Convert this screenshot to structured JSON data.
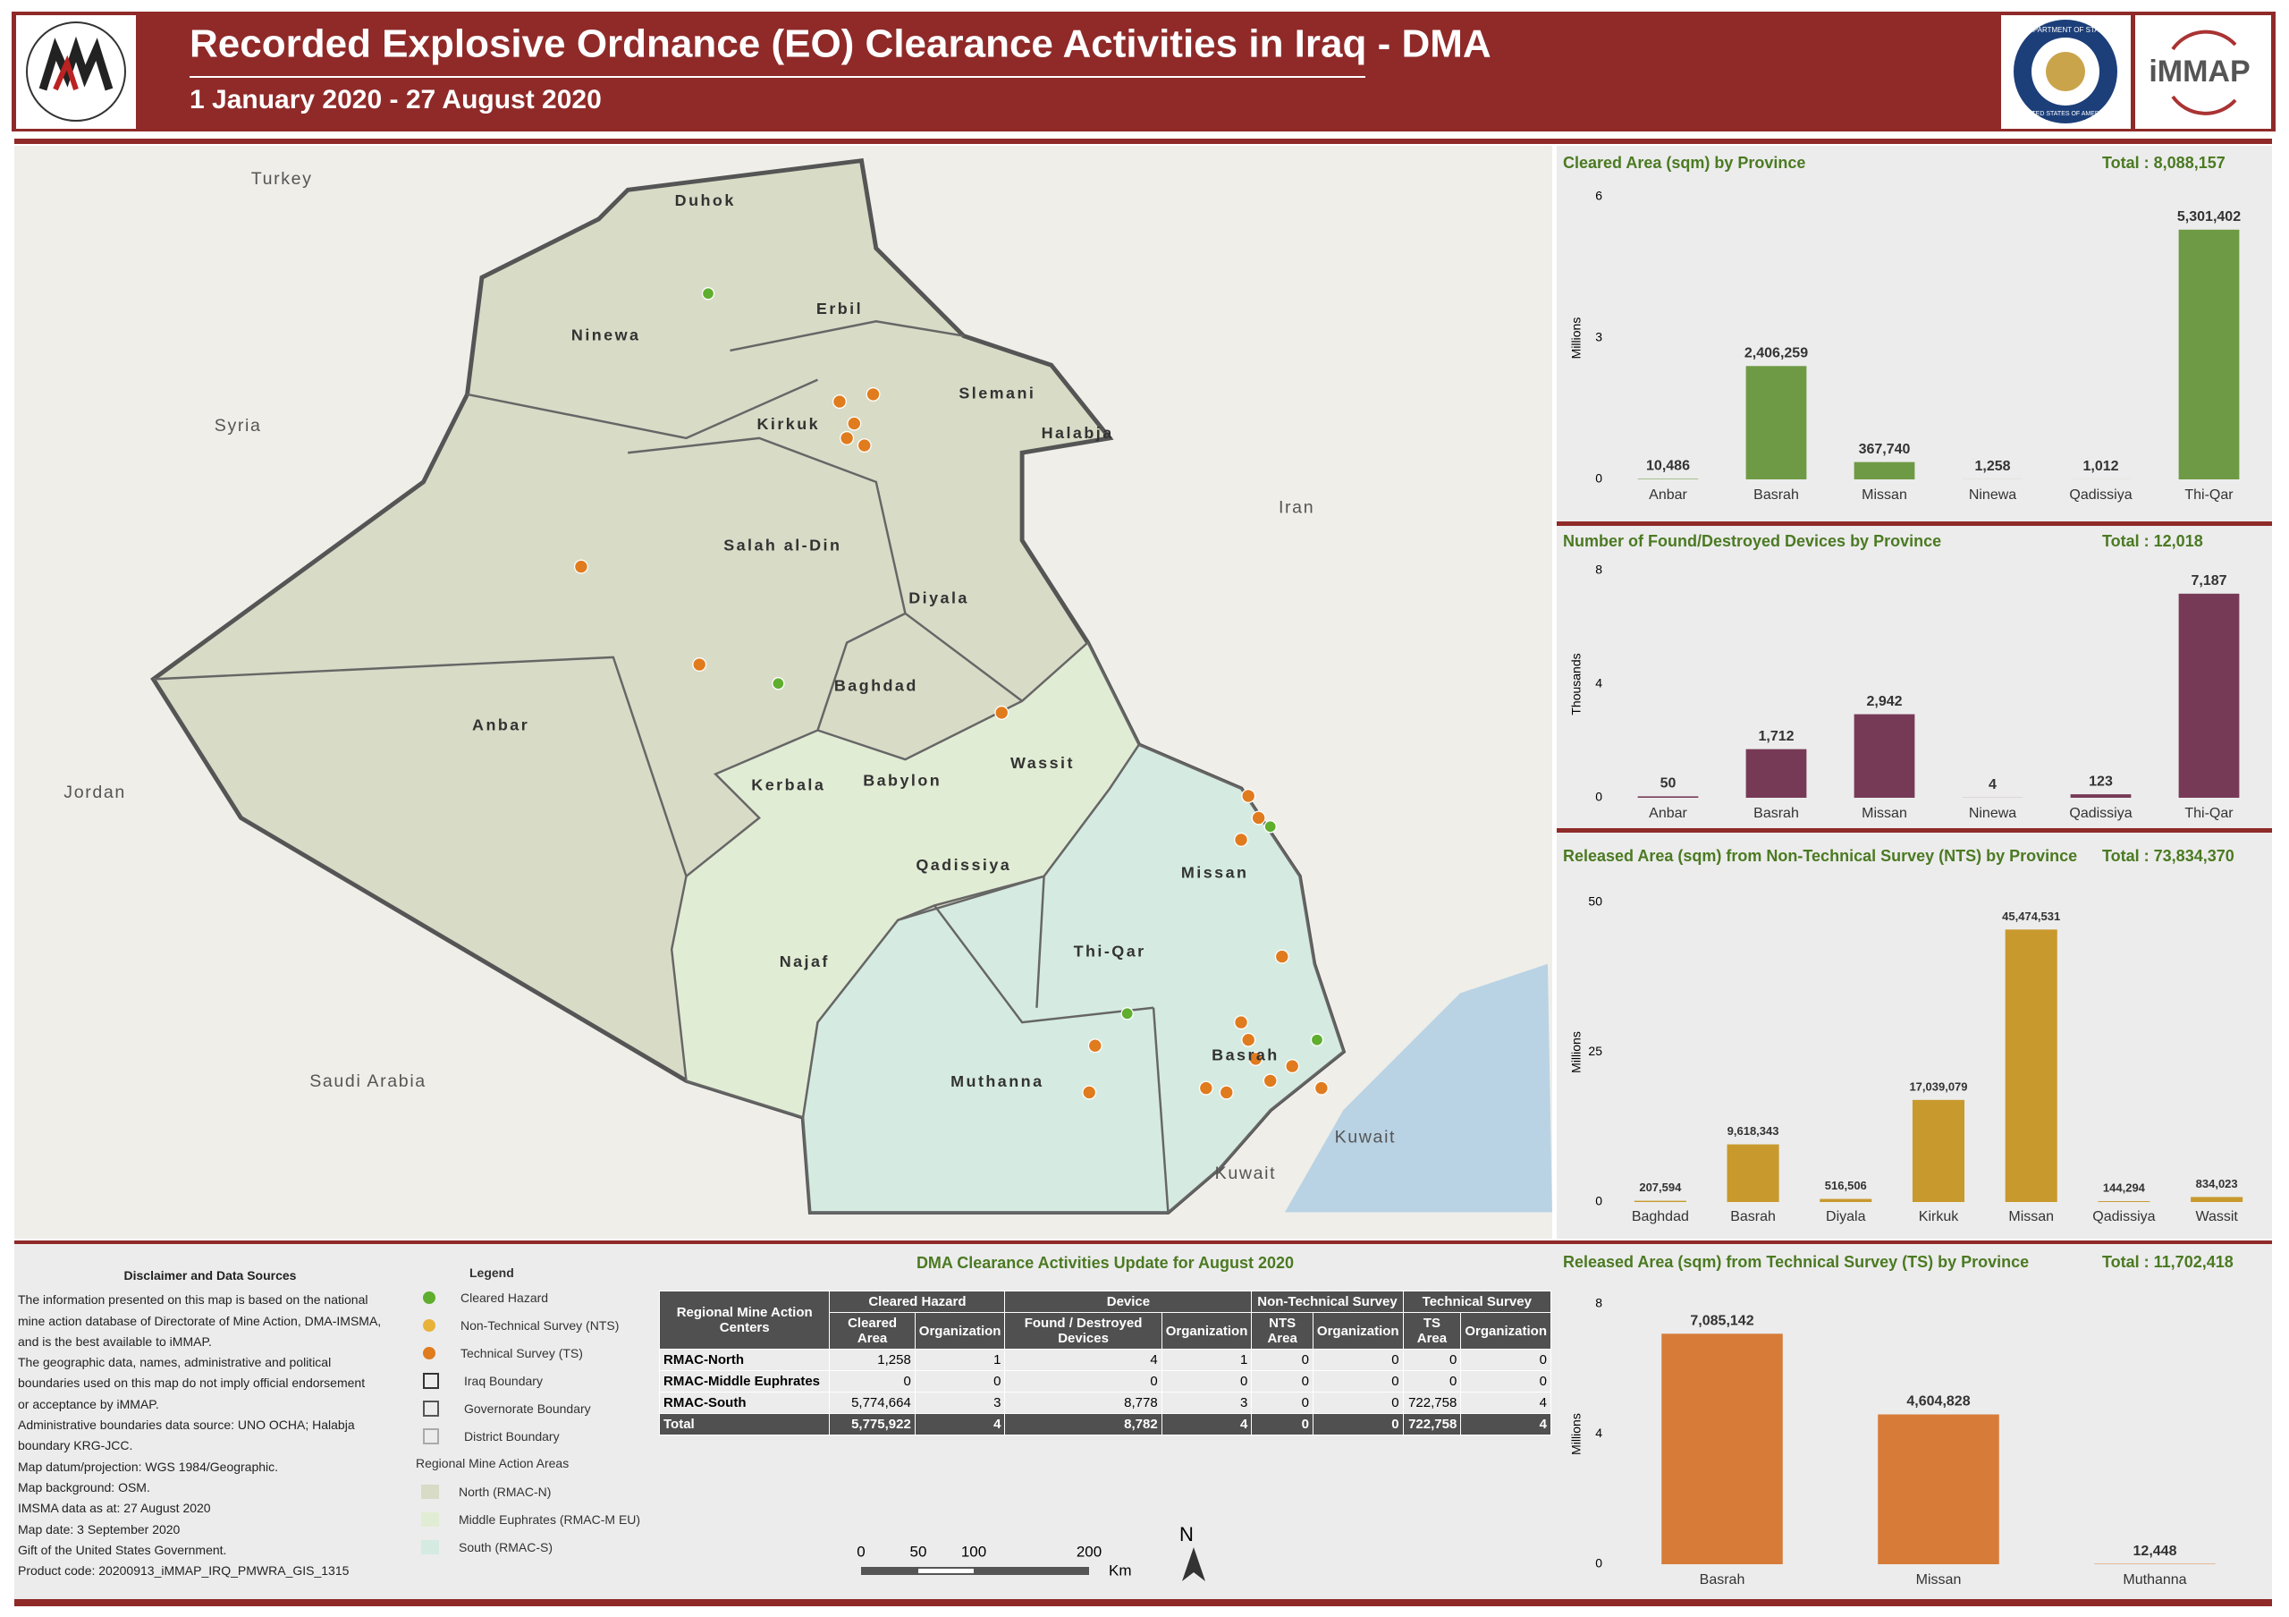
{
  "header": {
    "title": "Recorded Explosive Ordnance (EO) Clearance Activities in Iraq - DMA",
    "subtitle": "1 January 2020 - 27 August 2020",
    "partner": "iMMAP",
    "seal_top": "DEPARTMENT OF STATE",
    "seal_bottom": "UNITED STATES OF AMERICA"
  },
  "chart_data": [
    {
      "type": "bar",
      "title": "Cleared Area (sqm) by Province",
      "total": "Total : 8,088,157",
      "y_label": "Millions",
      "color": "#6f9a45",
      "categories": [
        "Anbar",
        "Basrah",
        "Missan",
        "Ninewa",
        "Qadissiya",
        "Thi-Qar"
      ],
      "values": [
        0.010486,
        2.406259,
        0.36774,
        0.001258,
        0.001012,
        5.301402
      ],
      "value_labels": [
        "10,486",
        "2,406,259",
        "367,740",
        "1,258",
        "1,012",
        "5,301,402"
      ],
      "ylim": [
        0,
        6
      ],
      "yticks": [
        0,
        3,
        6
      ]
    },
    {
      "type": "bar",
      "title": "Number of Found/Destroyed Devices by Province",
      "total": "Total : 12,018",
      "y_label": "Thousands",
      "color": "#773a56",
      "categories": [
        "Anbar",
        "Basrah",
        "Missan",
        "Ninewa",
        "Qadissiya",
        "Thi-Qar"
      ],
      "values": [
        0.05,
        1.712,
        2.942,
        0.004,
        0.123,
        7.187
      ],
      "value_labels": [
        "50",
        "1,712",
        "2,942",
        "4",
        "123",
        "7,187"
      ],
      "ylim": [
        0,
        8
      ],
      "yticks": [
        0,
        4,
        8
      ]
    },
    {
      "type": "bar",
      "title": "Released Area (sqm) from Non-Technical Survey (NTS) by Province",
      "total": "Total : 73,834,370",
      "y_label": "Millions",
      "color": "#c8992d",
      "categories": [
        "Baghdad",
        "Basrah",
        "Diyala",
        "Kirkuk",
        "Missan",
        "Qadissiya",
        "Wassit"
      ],
      "values": [
        0.207594,
        9.618343,
        0.516506,
        17.039079,
        45.474531,
        0.144294,
        0.834023
      ],
      "value_labels": [
        "207,594",
        "9,618,343",
        "516,506",
        "17,039,079",
        "45,474,531",
        "144,294",
        "834,023"
      ],
      "ylim": [
        0,
        50
      ],
      "yticks": [
        0,
        25,
        50
      ]
    },
    {
      "type": "bar",
      "title": "Released Area (sqm) from Technical Survey (TS) by Province",
      "total": "Total : 11,702,418",
      "y_label": "Millions",
      "color": "#d67c38",
      "categories": [
        "Basrah",
        "Missan",
        "Muthanna"
      ],
      "values": [
        7.085142,
        4.604828,
        0.012448
      ],
      "value_labels": [
        "7,085,142",
        "4,604,828",
        "12,448"
      ],
      "ylim": [
        0,
        8
      ],
      "yticks": [
        0,
        4,
        8
      ]
    }
  ],
  "table": {
    "title": "DMA Clearance Activities Update for August 2020",
    "corner": "Regional Mine Action Centers",
    "groups": [
      "Cleared Hazard",
      "Device",
      "Non-Technical Survey",
      "Technical Survey"
    ],
    "columns": [
      "Cleared Area",
      "Organization",
      "Found / Destroyed Devices",
      "Organization",
      "NTS Area",
      "Organization",
      "TS Area",
      "Organization"
    ],
    "rows": [
      [
        "RMAC-North",
        "1,258",
        "1",
        "4",
        "1",
        "0",
        "0",
        "0",
        "0"
      ],
      [
        "RMAC-Middle Euphrates",
        "0",
        "0",
        "0",
        "0",
        "0",
        "0",
        "0",
        "0"
      ],
      [
        "RMAC-South",
        "5,774,664",
        "3",
        "8,778",
        "3",
        "0",
        "0",
        "722,758",
        "4"
      ],
      [
        "Total",
        "5,775,922",
        "4",
        "8,782",
        "4",
        "0",
        "0",
        "722,758",
        "4"
      ]
    ]
  },
  "disclaimer": {
    "title": "Disclaimer and Data Sources",
    "lines": [
      "The information presented on this map is based on the national",
      "mine action database of Directorate of Mine Action, DMA-IMSMA,",
      "and is the best available to iMMAP.",
      "The geographic data, names, administrative and political",
      "boundaries used on this map do not imply official endorsement",
      "or acceptance by iMMAP.",
      "Administrative boundaries data source: UNO OCHA; Halabja",
      "boundary KRG-JCC.",
      "Map datum/projection: WGS 1984/Geographic.",
      "Map background: OSM.",
      "IMSMA data as at: 27 August 2020",
      "Map date: 3 September 2020",
      "Gift of the United States Government.",
      "Product code: 20200913_iMMAP_IRQ_PMWRA_GIS_1315"
    ]
  },
  "legend": {
    "title": "Legend",
    "items": [
      "Cleared Hazard",
      "Non-Technical Survey (NTS)",
      "Technical Survey (TS)",
      "Iraq Boundary",
      "Governorate Boundary",
      "District Boundary"
    ],
    "areas_title": "Regional Mine Action Areas",
    "areas": [
      "North (RMAC-N)",
      "Middle Euphrates (RMAC-M EU)",
      "South (RMAC-S)"
    ]
  },
  "map": {
    "provinces": [
      "Duhok",
      "Erbil",
      "Ninewa",
      "Slemani",
      "Kirkuk",
      "Halabja",
      "Salah al-Din",
      "Diyala",
      "Baghdad",
      "Anbar",
      "Wassit",
      "Kerbala",
      "Babylon",
      "Missan",
      "Qadissiya",
      "Thi-Qar",
      "Najaf",
      "Basrah",
      "Muthanna"
    ],
    "countries": [
      "Turkey",
      "Syria",
      "Iran",
      "Jordan",
      "Saudi Arabia",
      "Kuwait",
      "Kuwait"
    ],
    "scale_bar": [
      "0",
      "50",
      "100",
      "200",
      "Km"
    ],
    "north": "N"
  }
}
